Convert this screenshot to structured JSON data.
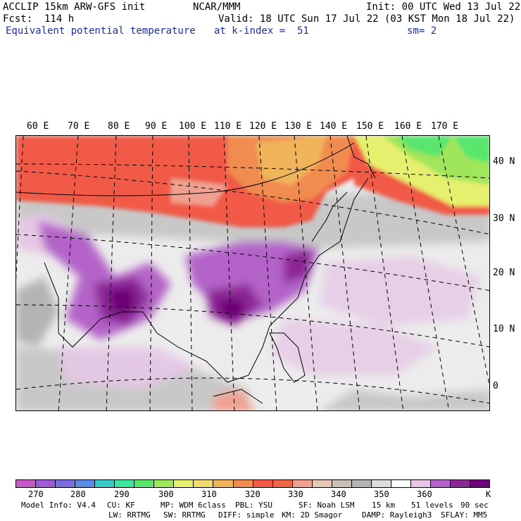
{
  "header": {
    "model_line": "ACCLIP 15km ARW-GFS init",
    "forecast_line": "Fcst:  114 h",
    "field_name": "Equivalent potential temperature",
    "center": "NCAR/MMM",
    "init_line": "Init: 00 UTC Wed 13 Jul 22",
    "valid_line": "Valid: 18 UTC Sun 17 Jul 22 (03 KST Mon 18 Jul 22)",
    "level_line": "at k-index =  51",
    "smoothing_line": "sm= 2"
  },
  "map": {
    "longitude_labels": [
      "60 E",
      "70 E",
      "80 E",
      "90 E",
      "100 E",
      "110 E",
      "120 E",
      "130 E",
      "140 E",
      "150 E",
      "160 E",
      "170 E"
    ],
    "latitude_labels": [
      "40 N",
      "30 N",
      "20 N",
      "10 N",
      "0"
    ]
  },
  "colorbar": {
    "unit": "K",
    "tick_labels": [
      "270",
      "280",
      "290",
      "300",
      "310",
      "320",
      "330",
      "340",
      "350",
      "360"
    ],
    "colors": [
      "#c85ac8",
      "#a05ad6",
      "#7a6ee0",
      "#5a8ce6",
      "#3cc8c8",
      "#3ce6a0",
      "#5ae66e",
      "#a0e65a",
      "#e6f06e",
      "#f0dc6e",
      "#f0b45a",
      "#f08c50",
      "#f05a46",
      "#f06446",
      "#f0a090",
      "#e6c8b4",
      "#c8c0b8",
      "#b4b4b4",
      "#dcdcdc",
      "#ffffff",
      "#e6c8e6",
      "#b464c8",
      "#8c2896",
      "#6e0078"
    ]
  },
  "footer": {
    "line1": [
      "Model Info: V4.4",
      "CU: KF",
      "MP: WDM 6class",
      "PBL: YSU",
      "SF: Noah LSM",
      "15 km",
      "51 levels",
      "90 sec"
    ],
    "line2": [
      "LW: RRTMG",
      "SW: RRTMG",
      "DIFF: simple",
      "KM: 2D Smagor",
      "DAMP: Rayleigh3",
      "SFLAY: MM5"
    ]
  }
}
